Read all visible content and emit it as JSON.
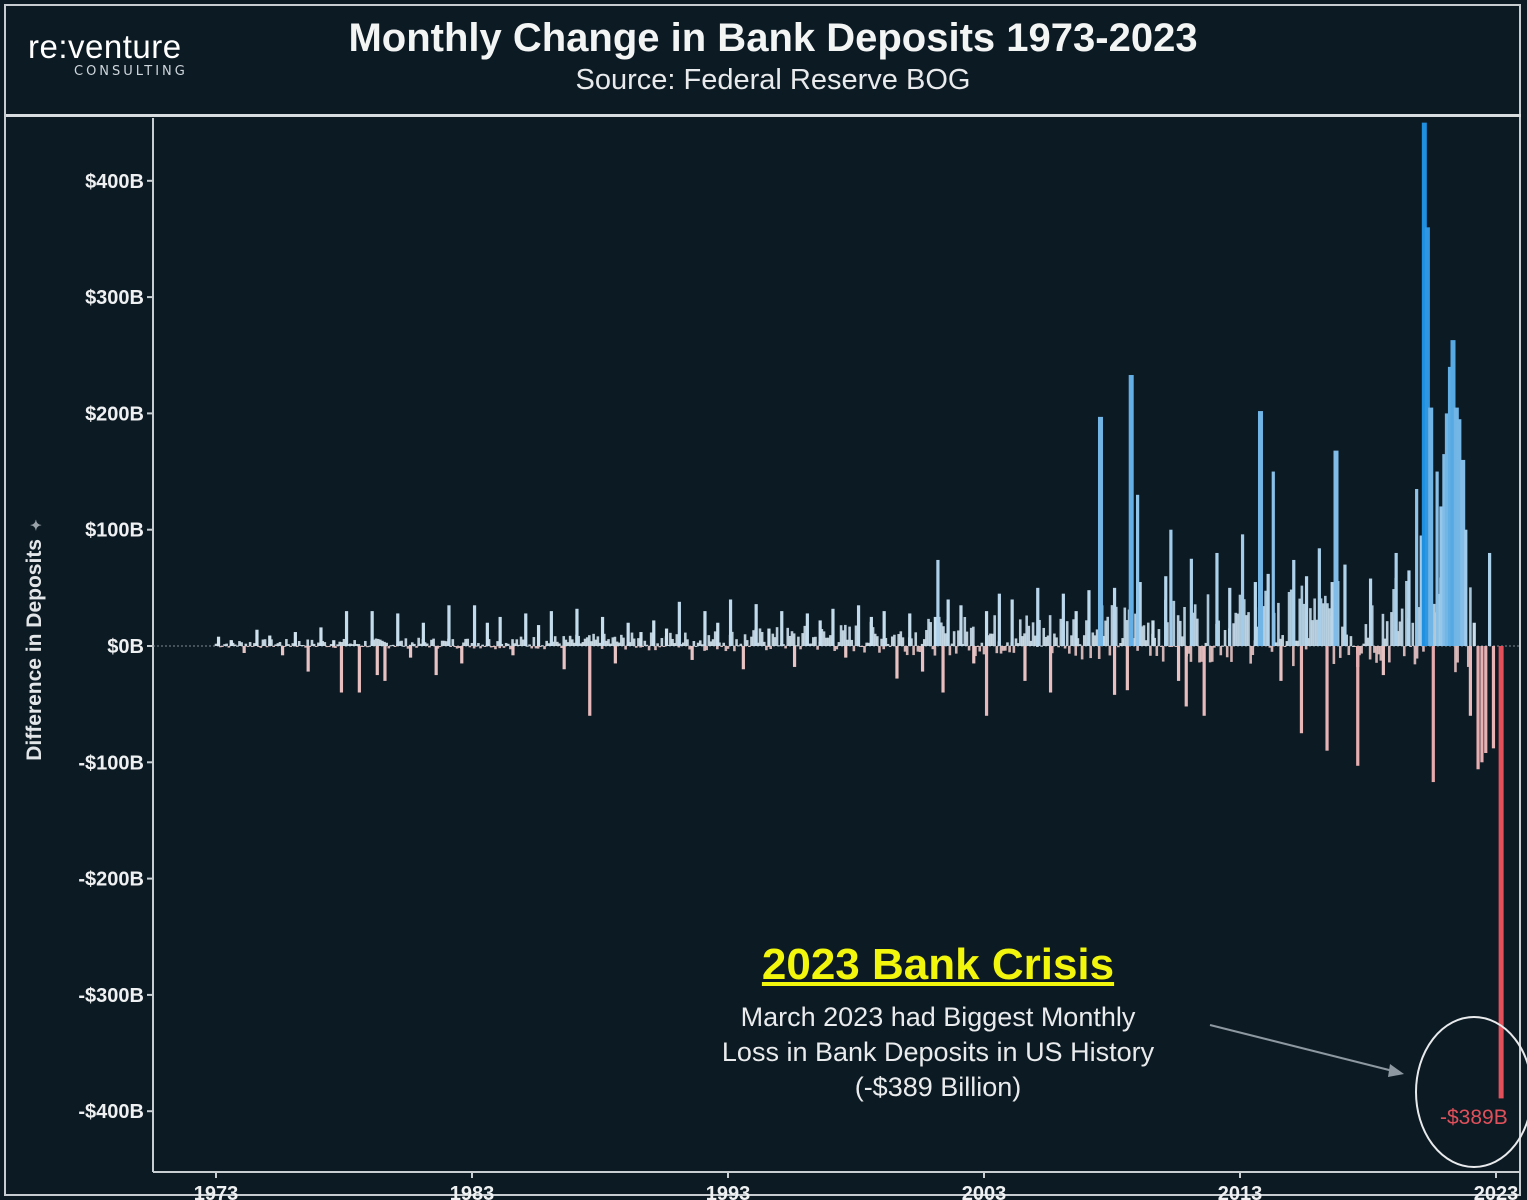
{
  "brand": {
    "name": "re:venture",
    "tagline": "CONSULTING"
  },
  "chart_data": {
    "type": "bar",
    "title": "Monthly Change in Bank Deposits 1973-2023",
    "subtitle": "Source: Federal Reserve BOG",
    "ylabel": "Difference in Deposits",
    "ylim": [
      -450,
      450
    ],
    "yticks": [
      400,
      300,
      200,
      100,
      0,
      -100,
      -200,
      -300,
      -400
    ],
    "ytick_labels": [
      "$400B",
      "$300B",
      "$200B",
      "$100B",
      "$0B",
      "-$100B",
      "-$200B",
      "-$300B",
      "-$400B"
    ],
    "xticks": [
      1973,
      1983,
      1993,
      2003,
      2013,
      2023
    ],
    "xtick_labels": [
      "1973",
      "1983",
      "1993",
      "2003",
      "2013",
      "2023"
    ],
    "colors": {
      "positive_light": "#d9e6ee",
      "positive_strong": "#1f8fe0",
      "negative_light": "#e8c6c6",
      "negative_strong": "#e4505a"
    },
    "series": [
      {
        "values": [
          {
            "x": 1973.1,
            "y": 8
          },
          {
            "x": 1973.6,
            "y": 5
          },
          {
            "x": 1974.1,
            "y": -6
          },
          {
            "x": 1974.6,
            "y": 14
          },
          {
            "x": 1975.1,
            "y": 9
          },
          {
            "x": 1975.6,
            "y": -8
          },
          {
            "x": 1976.1,
            "y": 12
          },
          {
            "x": 1976.6,
            "y": -22
          },
          {
            "x": 1977.1,
            "y": 16
          },
          {
            "x": 1977.6,
            "y": 5
          },
          {
            "x": 1978.1,
            "y": 30
          },
          {
            "x": 1978.6,
            "y": -40
          },
          {
            "x": 1979.1,
            "y": 30
          },
          {
            "x": 1979.6,
            "y": -30
          },
          {
            "x": 1980.1,
            "y": 28
          },
          {
            "x": 1980.6,
            "y": -10
          },
          {
            "x": 1981.1,
            "y": 20
          },
          {
            "x": 1981.6,
            "y": -25
          },
          {
            "x": 1982.1,
            "y": 35
          },
          {
            "x": 1982.6,
            "y": -15
          },
          {
            "x": 1983.1,
            "y": 35
          },
          {
            "x": 1983.6,
            "y": 20
          },
          {
            "x": 1984.1,
            "y": 25
          },
          {
            "x": 1984.6,
            "y": -8
          },
          {
            "x": 1985.1,
            "y": 28
          },
          {
            "x": 1985.6,
            "y": 18
          },
          {
            "x": 1986.1,
            "y": 30
          },
          {
            "x": 1986.6,
            "y": -20
          },
          {
            "x": 1987.1,
            "y": 32
          },
          {
            "x": 1987.6,
            "y": -60
          },
          {
            "x": 1988.1,
            "y": 25
          },
          {
            "x": 1988.6,
            "y": -15
          },
          {
            "x": 1989.1,
            "y": 20
          },
          {
            "x": 1989.6,
            "y": 12
          },
          {
            "x": 1990.1,
            "y": 22
          },
          {
            "x": 1990.6,
            "y": 15
          },
          {
            "x": 1991.1,
            "y": 38
          },
          {
            "x": 1991.6,
            "y": -12
          },
          {
            "x": 1992.1,
            "y": 30
          },
          {
            "x": 1992.6,
            "y": 20
          },
          {
            "x": 1993.1,
            "y": 40
          },
          {
            "x": 1993.6,
            "y": -20
          },
          {
            "x": 1994.1,
            "y": 36
          },
          {
            "x": 1994.6,
            "y": 15
          },
          {
            "x": 1995.1,
            "y": 30
          },
          {
            "x": 1995.6,
            "y": -18
          },
          {
            "x": 1996.1,
            "y": 28
          },
          {
            "x": 1996.6,
            "y": 22
          },
          {
            "x": 1997.1,
            "y": 32
          },
          {
            "x": 1997.6,
            "y": -10
          },
          {
            "x": 1998.1,
            "y": 35
          },
          {
            "x": 1998.6,
            "y": 25
          },
          {
            "x": 1999.1,
            "y": 30
          },
          {
            "x": 1999.6,
            "y": -28
          },
          {
            "x": 2000.1,
            "y": 28
          },
          {
            "x": 2000.6,
            "y": -22
          },
          {
            "x": 2001.1,
            "y": 25
          },
          {
            "x": 2001.6,
            "y": 40
          },
          {
            "x": 2002.1,
            "y": 35
          },
          {
            "x": 2002.6,
            "y": -15
          },
          {
            "x": 2003.1,
            "y": 30
          },
          {
            "x": 2003.6,
            "y": 45
          },
          {
            "x": 2004.1,
            "y": 40
          },
          {
            "x": 2004.6,
            "y": -30
          },
          {
            "x": 2005.1,
            "y": 50
          },
          {
            "x": 2005.6,
            "y": -40
          },
          {
            "x": 2006.1,
            "y": 45
          },
          {
            "x": 2006.6,
            "y": 30
          },
          {
            "x": 2007.1,
            "y": 48
          },
          {
            "x": 2007.6,
            "y": 35
          },
          {
            "x": 2008.1,
            "y": 50
          },
          {
            "x": 2008.6,
            "y": -38
          },
          {
            "x": 2009.1,
            "y": 55
          },
          {
            "x": 2009.6,
            "y": 22
          },
          {
            "x": 2010.1,
            "y": 60
          },
          {
            "x": 2010.6,
            "y": -30
          },
          {
            "x": 2011.1,
            "y": 75
          },
          {
            "x": 2011.6,
            "y": -60
          },
          {
            "x": 2012.1,
            "y": 80
          },
          {
            "x": 2012.6,
            "y": 50
          },
          {
            "x": 2013.1,
            "y": 96
          },
          {
            "x": 2013.6,
            "y": 55
          },
          {
            "x": 2014.1,
            "y": 62
          },
          {
            "x": 2014.6,
            "y": -30
          },
          {
            "x": 2015.1,
            "y": 74
          },
          {
            "x": 2015.6,
            "y": 60
          },
          {
            "x": 2016.1,
            "y": 84
          },
          {
            "x": 2016.6,
            "y": 55
          },
          {
            "x": 2017.1,
            "y": 70
          },
          {
            "x": 2017.6,
            "y": -18
          },
          {
            "x": 2018.1,
            "y": 58
          },
          {
            "x": 2018.6,
            "y": -25
          },
          {
            "x": 2019.1,
            "y": 80
          },
          {
            "x": 2019.6,
            "y": 65
          },
          {
            "x": 2007.55,
            "y": 197
          },
          {
            "x": 2008.1,
            "y": -42
          },
          {
            "x": 2008.75,
            "y": 233
          },
          {
            "x": 2009.0,
            "y": 130
          },
          {
            "x": 2010.3,
            "y": 100
          },
          {
            "x": 2010.9,
            "y": -52
          },
          {
            "x": 2013.8,
            "y": 202
          },
          {
            "x": 2014.3,
            "y": 150
          },
          {
            "x": 2015.4,
            "y": -75
          },
          {
            "x": 2016.4,
            "y": -90
          },
          {
            "x": 2016.75,
            "y": 168
          },
          {
            "x": 2017.6,
            "y": -103
          },
          {
            "x": 2001.2,
            "y": 74
          },
          {
            "x": 2001.4,
            "y": -40
          },
          {
            "x": 2003.1,
            "y": -60
          },
          {
            "x": 1979.3,
            "y": -25
          },
          {
            "x": 1977.9,
            "y": -40
          },
          {
            "x": 2019.9,
            "y": 135
          },
          {
            "x": 2020.08,
            "y": 95
          },
          {
            "x": 2020.2,
            "y": 470
          },
          {
            "x": 2020.32,
            "y": 360
          },
          {
            "x": 2020.45,
            "y": 205
          },
          {
            "x": 2020.55,
            "y": -117
          },
          {
            "x": 2020.7,
            "y": 150
          },
          {
            "x": 2020.85,
            "y": 120
          },
          {
            "x": 2021.0,
            "y": 165
          },
          {
            "x": 2021.1,
            "y": 200
          },
          {
            "x": 2021.22,
            "y": 240
          },
          {
            "x": 2021.32,
            "y": 263
          },
          {
            "x": 2021.45,
            "y": 205
          },
          {
            "x": 2021.55,
            "y": 195
          },
          {
            "x": 2021.7,
            "y": 160
          },
          {
            "x": 2021.82,
            "y": 100
          },
          {
            "x": 2022.0,
            "y": -60
          },
          {
            "x": 2022.15,
            "y": 20
          },
          {
            "x": 2022.3,
            "y": -106
          },
          {
            "x": 2022.45,
            "y": -100
          },
          {
            "x": 2022.6,
            "y": -92
          },
          {
            "x": 2022.75,
            "y": 80
          },
          {
            "x": 2022.9,
            "y": -88
          },
          {
            "x": 2023.2,
            "y": -389
          }
        ]
      }
    ],
    "annotation": {
      "title": "2023 Bank Crisis",
      "text": "March 2023 had Biggest Monthly\nLoss in Bank Deposits in US History\n(-$389 Billion)",
      "value_label": "-$389B",
      "arrow_color": "#8d98a0",
      "circle_color": "#e8eaec"
    }
  }
}
